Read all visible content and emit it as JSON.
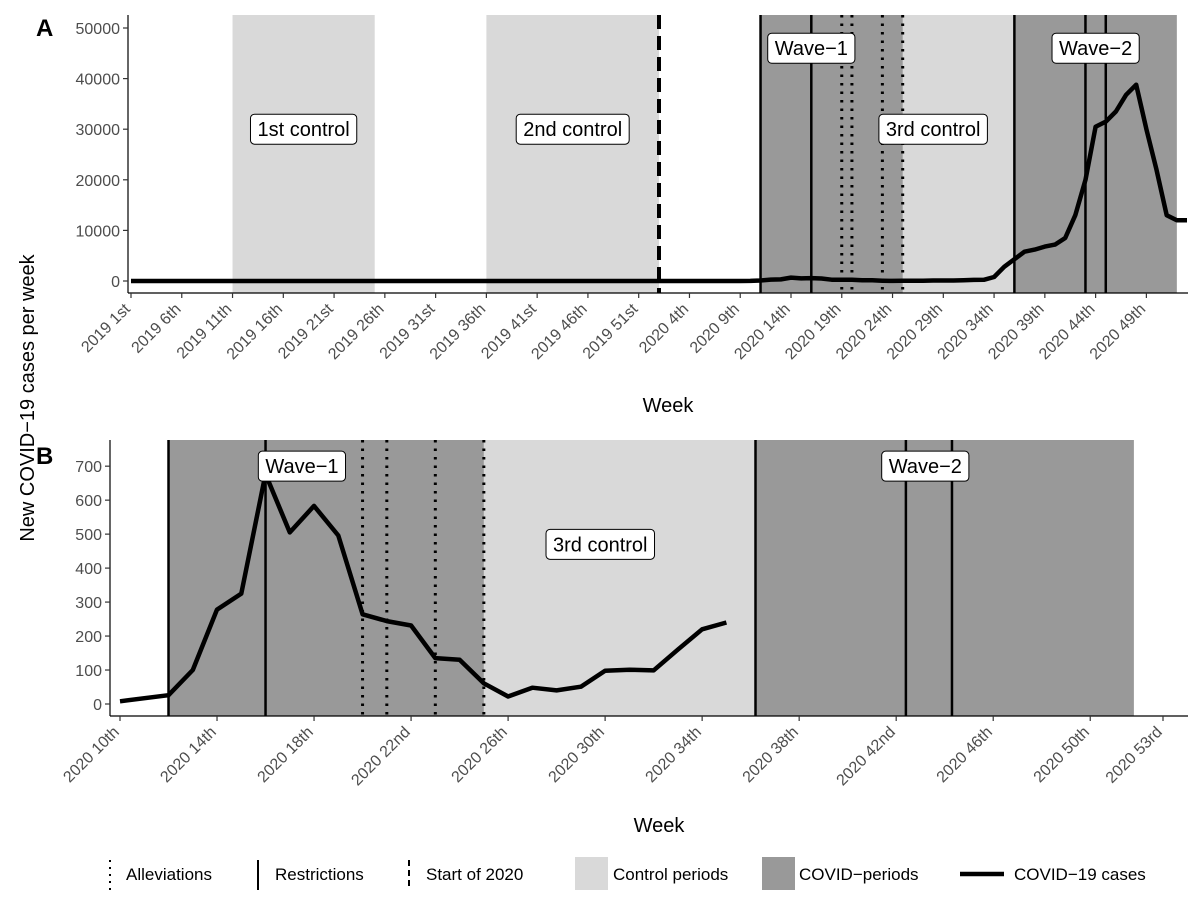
{
  "chart_data": {
    "type": "line",
    "y_axis_title": "New COVID−19 cases per week",
    "panels": [
      {
        "letter": "A",
        "xlabel": "Week",
        "x_range": [
          1,
          105
        ],
        "ylim": [
          0,
          50000
        ],
        "y_ticks": [
          0,
          10000,
          20000,
          30000,
          40000,
          50000
        ],
        "x_ticks": [
          {
            "x": 1,
            "label": "2019 1st"
          },
          {
            "x": 6,
            "label": "2019 6th"
          },
          {
            "x": 11,
            "label": "2019 11th"
          },
          {
            "x": 16,
            "label": "2019 16th"
          },
          {
            "x": 21,
            "label": "2019 21st"
          },
          {
            "x": 26,
            "label": "2019 26th"
          },
          {
            "x": 31,
            "label": "2019 31st"
          },
          {
            "x": 36,
            "label": "2019 36th"
          },
          {
            "x": 41,
            "label": "2019 41st"
          },
          {
            "x": 46,
            "label": "2019 46th"
          },
          {
            "x": 51,
            "label": "2019 51st"
          },
          {
            "x": 56,
            "label": "2020 4th"
          },
          {
            "x": 61,
            "label": "2020 9th"
          },
          {
            "x": 66,
            "label": "2020 14th"
          },
          {
            "x": 71,
            "label": "2020 19th"
          },
          {
            "x": 76,
            "label": "2020 24th"
          },
          {
            "x": 81,
            "label": "2020 29th"
          },
          {
            "x": 86,
            "label": "2020 34th"
          },
          {
            "x": 91,
            "label": "2020 39th"
          },
          {
            "x": 96,
            "label": "2020 44th"
          },
          {
            "x": 101,
            "label": "2020 49th"
          }
        ],
        "control_periods": [
          [
            11,
            25
          ],
          [
            36,
            53
          ],
          [
            70,
            88
          ]
        ],
        "covid_periods": [
          [
            63,
            77
          ],
          [
            88,
            104
          ]
        ],
        "restrictions": [
          63,
          68,
          88,
          95,
          97
        ],
        "alleviations": [
          71,
          72,
          75,
          77
        ],
        "start_of_2020": [
          53
        ],
        "labels": [
          {
            "text": "1st control",
            "x": 18,
            "y": 30000
          },
          {
            "text": "2nd control",
            "x": 44.5,
            "y": 30000
          },
          {
            "text": "Wave−1",
            "x": 68,
            "y": 46000
          },
          {
            "text": "3rd control",
            "x": 80,
            "y": 30000
          },
          {
            "text": "Wave−2",
            "x": 96,
            "y": 46000
          }
        ],
        "series": [
          {
            "x": [
              1,
              5,
              10,
              15,
              20,
              25,
              30,
              35,
              40,
              45,
              50,
              55,
              60,
              61,
              62,
              63,
              64,
              65,
              66,
              67,
              68,
              69,
              70,
              71,
              72,
              73,
              74,
              75,
              76,
              77,
              78,
              79,
              80,
              81,
              82,
              83,
              84,
              85,
              86,
              87,
              88,
              89,
              90,
              91,
              92,
              93,
              94,
              95,
              96,
              97,
              98,
              99,
              100,
              101,
              102,
              103,
              104,
              105
            ],
            "y": [
              0,
              0,
              0,
              0,
              0,
              0,
              0,
              0,
              0,
              0,
              0,
              0,
              0,
              8,
              26,
              100,
              278,
              325,
              677,
              505,
              583,
              496,
              264,
              244,
              231,
              135,
              130,
              61,
              22,
              48,
              40,
              51,
              98,
              101,
              99,
              160,
              220,
              240,
              800,
              2800,
              4300,
              5800,
              6200,
              6800,
              7200,
              8500,
              13000,
              20000,
              30500,
              31500,
              33500,
              36800,
              38800,
              30000,
              22000,
              13000,
              12000,
              12000
            ]
          }
        ]
      },
      {
        "letter": "B",
        "xlabel": "Week",
        "x_range": [
          10,
          53
        ],
        "ylim": [
          0,
          780
        ],
        "y_ticks": [
          0,
          100,
          200,
          300,
          400,
          500,
          600,
          700
        ],
        "x_ticks": [
          {
            "x": 10,
            "label": "2020 10th"
          },
          {
            "x": 14,
            "label": "2020 14th"
          },
          {
            "x": 18,
            "label": "2020 18th"
          },
          {
            "x": 22,
            "label": "2020 22nd"
          },
          {
            "x": 26,
            "label": "2020 26th"
          },
          {
            "x": 30,
            "label": "2020 30th"
          },
          {
            "x": 34,
            "label": "2020 34th"
          },
          {
            "x": 38,
            "label": "2020 38th"
          },
          {
            "x": 42,
            "label": "2020 42nd"
          },
          {
            "x": 46,
            "label": "2020 46th"
          },
          {
            "x": 50,
            "label": "2020 50th"
          },
          {
            "x": 53,
            "label": "2020 53rd"
          }
        ],
        "control_periods": [
          [
            25,
            36.2
          ]
        ],
        "covid_periods": [
          [
            12,
            25
          ],
          [
            36.2,
            51.8
          ]
        ],
        "restrictions": [
          12,
          16,
          36.2,
          42.4,
          44.3
        ],
        "alleviations": [
          20,
          21,
          23,
          25
        ],
        "start_of_2020": [],
        "labels": [
          {
            "text": "Wave−1",
            "x": 17.5,
            "y": 700
          },
          {
            "text": "3rd control",
            "x": 29.8,
            "y": 470
          },
          {
            "text": "Wave−2",
            "x": 43.2,
            "y": 700
          }
        ],
        "series": [
          {
            "x": [
              10,
              12,
              13,
              14,
              15,
              16,
              17,
              18,
              19,
              20,
              21,
              22,
              23,
              24,
              25,
              26,
              27,
              28,
              29,
              30,
              31,
              32,
              33,
              34,
              35
            ],
            "y": [
              8,
              26,
              100,
              278,
              325,
              677,
              505,
              583,
              496,
              264,
              244,
              231,
              135,
              130,
              61,
              22,
              48,
              40,
              51,
              98,
              101,
              99,
              160,
              220,
              240
            ]
          }
        ]
      }
    ],
    "legend": {
      "position": "bottom",
      "items": [
        {
          "key": "alleviations",
          "label": "Alleviations",
          "style": "dotted"
        },
        {
          "key": "restrictions",
          "label": "Restrictions",
          "style": "solid"
        },
        {
          "key": "start2020",
          "label": "Start of 2020",
          "style": "dashed"
        },
        {
          "key": "control",
          "label": "Control periods",
          "color": "#d9d9d9"
        },
        {
          "key": "covid",
          "label": "COVID−periods",
          "color": "#999999"
        },
        {
          "key": "cases",
          "label": "COVID−19 cases",
          "color": "#000000"
        }
      ]
    }
  }
}
